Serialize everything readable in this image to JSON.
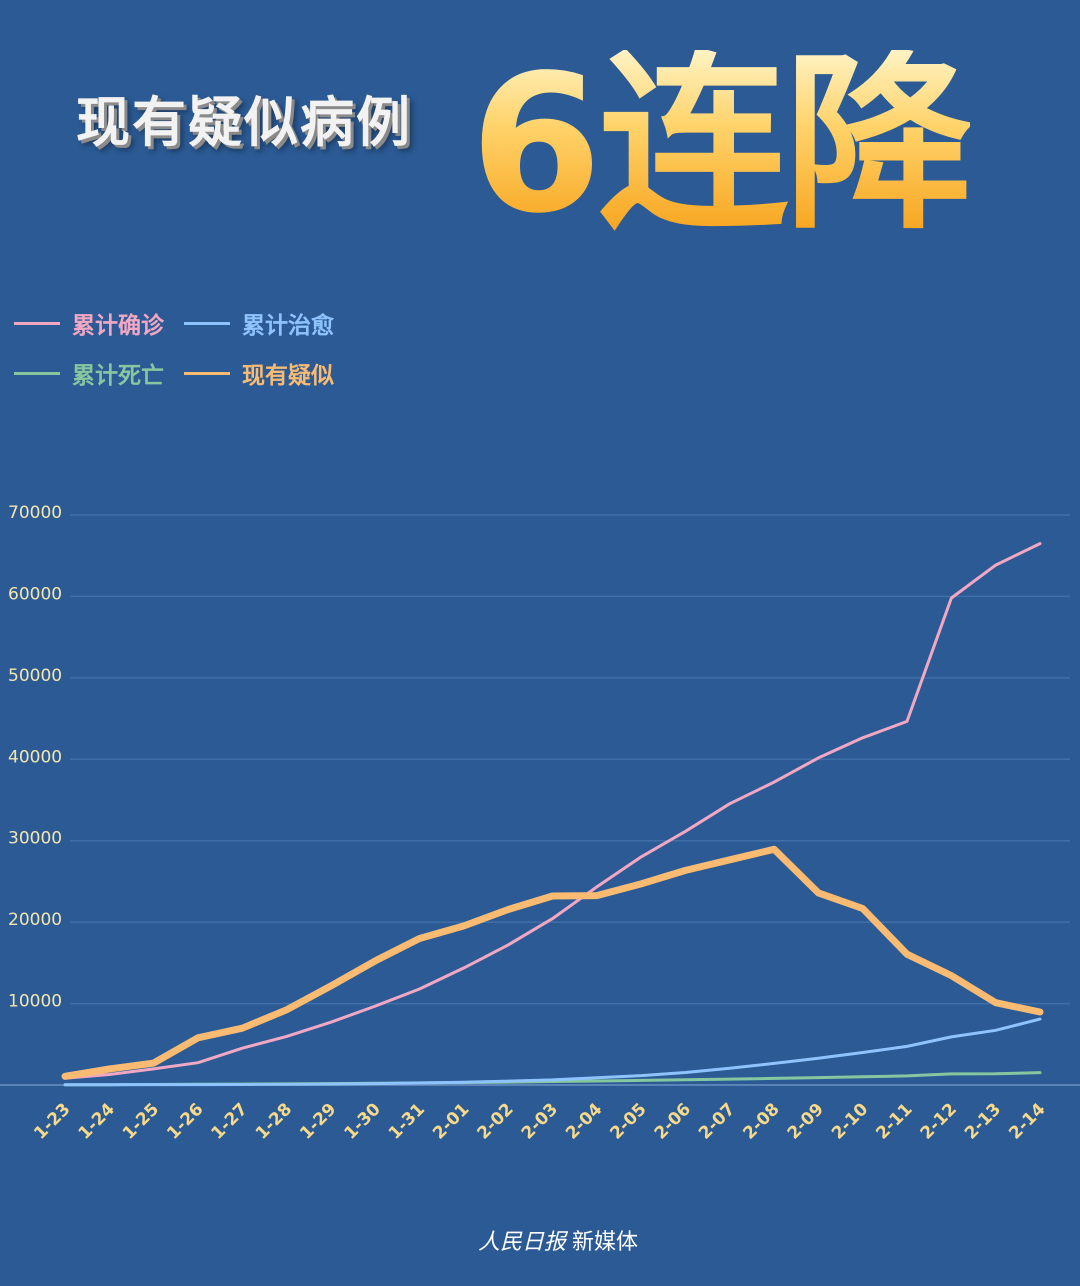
{
  "header": {
    "subtitle": "现有疑似病例",
    "headline": "6连降"
  },
  "footer": {
    "logo_text": "人民日报",
    "label": "新媒体"
  },
  "chart_data": {
    "type": "line",
    "title": "现有疑似病例6连降",
    "xlabel": "",
    "ylabel": "",
    "ylim": [
      0,
      70000
    ],
    "yticks": [
      10000,
      20000,
      30000,
      40000,
      50000,
      60000,
      70000
    ],
    "grid": true,
    "legend_position": "top-left",
    "categories": [
      "1-23",
      "1-24",
      "1-25",
      "1-26",
      "1-27",
      "1-28",
      "1-29",
      "1-30",
      "1-31",
      "2-01",
      "2-02",
      "2-03",
      "2-04",
      "2-05",
      "2-06",
      "2-07",
      "2-08",
      "2-09",
      "2-10",
      "2-11",
      "2-12",
      "2-13",
      "2-14"
    ],
    "series": [
      {
        "name": "累计确诊",
        "color": "#f2a7c3",
        "width": 3,
        "values": [
          830,
          1287,
          1975,
          2744,
          4515,
          5974,
          7711,
          9692,
          11791,
          14380,
          17205,
          20438,
          24324,
          28018,
          31161,
          34546,
          37198,
          40171,
          42638,
          44653,
          59804,
          63851,
          66492
        ]
      },
      {
        "name": "累计治愈",
        "color": "#8fc3ff",
        "width": 3,
        "values": [
          34,
          38,
          49,
          51,
          60,
          103,
          124,
          171,
          243,
          328,
          475,
          632,
          892,
          1153,
          1540,
          2050,
          2649,
          3281,
          3996,
          4740,
          5911,
          6723,
          8096
        ]
      },
      {
        "name": "累计死亡",
        "color": "#86c7a0",
        "width": 3,
        "values": [
          25,
          41,
          56,
          80,
          106,
          132,
          170,
          213,
          259,
          304,
          361,
          425,
          490,
          563,
          636,
          722,
          811,
          908,
          1016,
          1113,
          1367,
          1380,
          1523
        ]
      },
      {
        "name": "现有疑似",
        "color": "#f9bb72",
        "width": 7,
        "values": [
          1072,
          1965,
          2684,
          5794,
          6973,
          9239,
          12167,
          15238,
          17988,
          19544,
          21558,
          23214,
          23260,
          24702,
          26359,
          27657,
          28942,
          23589,
          21675,
          16067,
          13435,
          10109,
          8969
        ]
      }
    ]
  }
}
